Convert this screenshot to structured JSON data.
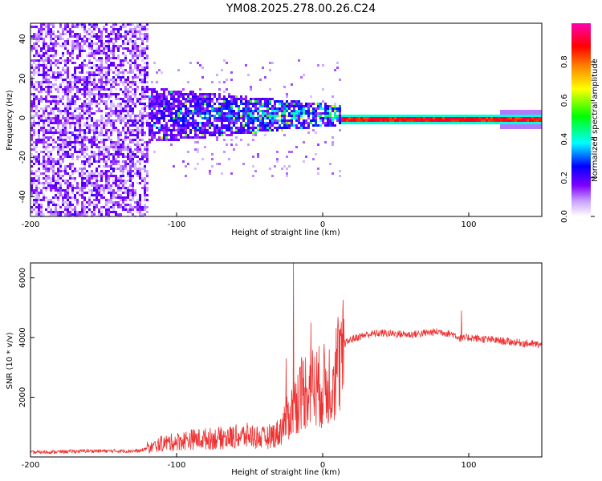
{
  "title": "YM08.2025.278.00.26.C24",
  "chart_data": [
    {
      "type": "heatmap",
      "xlabel": "Height of straight line (km)",
      "ylabel": "Frequency (Hz)",
      "xlim": [
        -200,
        150
      ],
      "ylim": [
        -50,
        48
      ],
      "xticks": [
        -200,
        -100,
        0,
        100
      ],
      "yticks": [
        -40,
        -20,
        0,
        20,
        40
      ],
      "colorbar": {
        "label": "Normalized spectral amplitude",
        "range": [
          0.0,
          1.0
        ],
        "ticks": [
          0.0,
          0.2,
          0.4,
          0.6,
          0.8
        ],
        "tick_labels": [
          "0.0",
          "0.2",
          "0.4",
          "0.6",
          "0.8"
        ],
        "colors": [
          "#ffffff",
          "#8000ff",
          "#0000ff",
          "#00ffff",
          "#00ff00",
          "#ffff00",
          "#ff8000",
          "#ff0000",
          "#ff00a0"
        ]
      },
      "regions": [
        {
          "x_range": [
            -200,
            -120
          ],
          "freq_range": [
            -50,
            48
          ],
          "amplitude": 0.1,
          "note": "broadband noise"
        },
        {
          "x_range": [
            -120,
            -40
          ],
          "freq_range": [
            -10,
            15
          ],
          "amplitude": 0.25
        },
        {
          "x_range": [
            -40,
            10
          ],
          "freq_range": [
            -8,
            8
          ],
          "amplitude": 0.45
        },
        {
          "x_range": [
            10,
            150
          ],
          "freq_range": [
            -1,
            1
          ],
          "amplitude": 1.0,
          "note": "narrow tone near 0 Hz"
        }
      ]
    },
    {
      "type": "line",
      "xlabel": "Height of straight line (km)",
      "ylabel": "SNR (10 * v/v)",
      "xlim": [
        -200,
        150
      ],
      "ylim": [
        0,
        6500
      ],
      "xticks": [
        -200,
        -100,
        0,
        100
      ],
      "yticks": [
        2000,
        4000,
        6000
      ],
      "series": [
        {
          "name": "SNR",
          "color": "#ee3333",
          "x": [
            -200,
            -160,
            -125,
            -110,
            -90,
            -70,
            -50,
            -40,
            -30,
            -25,
            -20,
            -15,
            -10,
            -5,
            0,
            5,
            10,
            15,
            20,
            30,
            40,
            60,
            80,
            90,
            95,
            100,
            120,
            150
          ],
          "values": [
            150,
            200,
            200,
            500,
            650,
            700,
            800,
            700,
            900,
            1400,
            1800,
            2400,
            2600,
            2600,
            2600,
            2800,
            3400,
            3800,
            3950,
            4100,
            4150,
            4100,
            4200,
            4100,
            3950,
            4000,
            3900,
            3750
          ],
          "spikes": [
            [
              -20,
              6500
            ],
            [
              -8,
              4500
            ],
            [
              -25,
              3300
            ],
            [
              95,
              4900
            ]
          ]
        }
      ]
    }
  ]
}
